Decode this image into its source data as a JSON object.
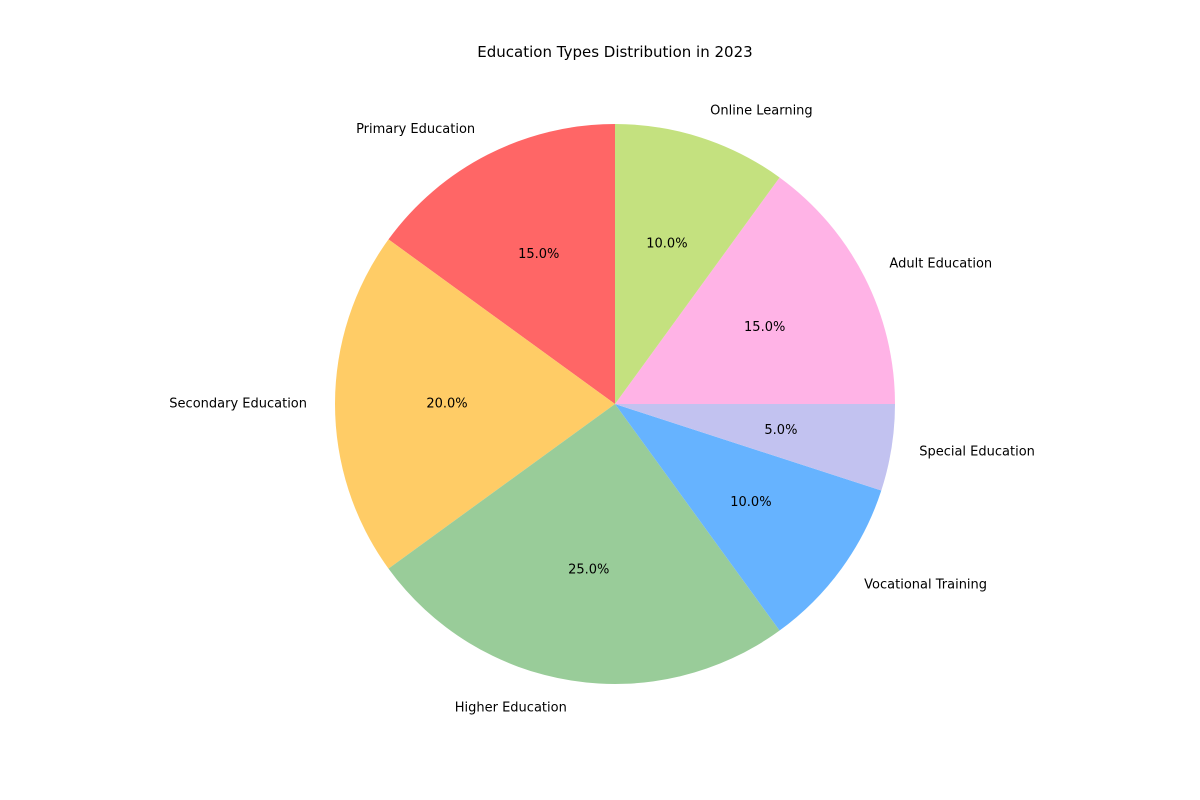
{
  "chart_data": {
    "type": "pie",
    "title": "Education Types Distribution in 2023",
    "categories": [
      "Primary Education",
      "Secondary Education",
      "Higher Education",
      "Vocational Training",
      "Special Education",
      "Adult Education",
      "Online Learning"
    ],
    "values": [
      15,
      20,
      25,
      10,
      5,
      15,
      10
    ],
    "percent_labels": [
      "15.0%",
      "20.0%",
      "25.0%",
      "10.0%",
      "5.0%",
      "15.0%",
      "10.0%"
    ],
    "colors": [
      "#ff6666",
      "#ffcc66",
      "#99cc99",
      "#66b3ff",
      "#c2c2f0",
      "#ffb3e6",
      "#c4e17f"
    ],
    "start_angle_deg": 90,
    "direction": "counterclockwise",
    "legend": "none"
  }
}
